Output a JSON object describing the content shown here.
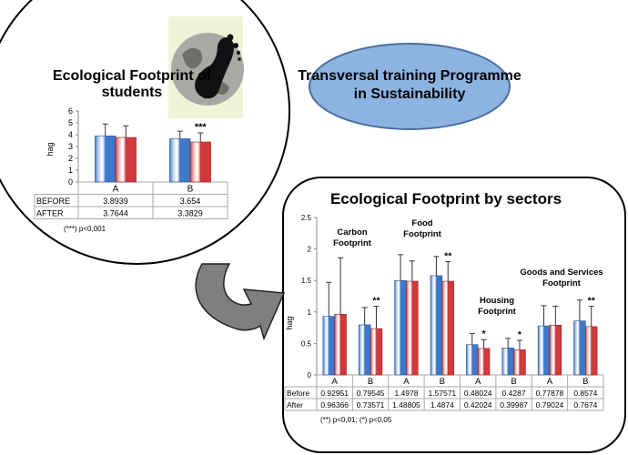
{
  "programme_label": "Transversal training Programme in Sustainability",
  "programme_lines": [
    "Transversal training Programme",
    "in Sustainability"
  ],
  "colors": {
    "before": "#3f78c8",
    "after": "#d03a3a",
    "ellipse_fill": "#8db3e2",
    "ellipse_stroke": "#4a6fa0",
    "arrow": "#7f7f7f"
  },
  "icons": [
    "globe-footprint-icon",
    "curved-arrow-icon"
  ],
  "chart_data": [
    {
      "type": "bar",
      "title": "Ecological Footprint of students",
      "title_lines": [
        "Ecological Footprint of",
        "students"
      ],
      "ylabel": "hag",
      "ylim": [
        0,
        6
      ],
      "yticks": [
        "0",
        "1",
        "2",
        "3",
        "4",
        "5",
        "6"
      ],
      "categories": [
        "A",
        "B"
      ],
      "series": [
        {
          "name": "BEFORE",
          "values": [
            3.8939,
            3.654
          ],
          "labels": [
            "3.8939",
            "3.654"
          ],
          "error_top": [
            4.9,
            4.3
          ]
        },
        {
          "name": "AFTER",
          "values": [
            3.7644,
            3.3829
          ],
          "labels": [
            "3.7644",
            "3.3829"
          ],
          "error_top": [
            4.75,
            4.15
          ]
        }
      ],
      "significance": [
        "",
        "***"
      ],
      "footnote": "(***) p<0,001"
    },
    {
      "type": "bar",
      "title": "Ecological Footprint by sectors",
      "ylabel": "hag",
      "ylim": [
        0,
        2.5
      ],
      "yticks": [
        "0",
        "0.5",
        "1",
        "1.5",
        "2",
        "2.5"
      ],
      "categories": [
        "A",
        "B",
        "A",
        "B",
        "A",
        "B",
        "A",
        "B"
      ],
      "groups": [
        {
          "lines": [
            "Carbon",
            "Footprint"
          ]
        },
        {
          "lines": [
            "Food",
            "Footprint"
          ]
        },
        {
          "lines": [
            "Housing",
            "Footprint"
          ]
        },
        {
          "lines": [
            "Goods and Services",
            "Footprint"
          ]
        }
      ],
      "series": [
        {
          "name": "Before",
          "values": [
            0.92951,
            0.79545,
            1.4978,
            1.57571,
            0.48024,
            0.4287,
            0.77878,
            0.8574
          ],
          "labels": [
            "0.92951",
            "0.79545",
            "1.4978",
            "1.57571",
            "0.48024",
            "0.4287",
            "0.77878",
            "0.8574"
          ],
          "error_top": [
            1.47,
            1.07,
            1.91,
            1.88,
            0.66,
            0.58,
            1.1,
            1.19
          ]
        },
        {
          "name": "After",
          "values": [
            0.96366,
            0.73571,
            1.48805,
            1.4874,
            0.42024,
            0.39987,
            0.79024,
            0.7674
          ],
          "labels": [
            "0.96366",
            "0.73571",
            "1.48805",
            "1.4874",
            "0.42024",
            "0.39987",
            "0.79024",
            "0.7674"
          ],
          "error_top": [
            1.86,
            1.09,
            1.81,
            1.8,
            0.56,
            0.55,
            1.09,
            1.09
          ]
        }
      ],
      "significance": [
        "",
        "**",
        "",
        "**",
        "*",
        "*",
        "",
        "**"
      ],
      "footnote": "(**) p<0,01; (*) p<0,05"
    }
  ]
}
